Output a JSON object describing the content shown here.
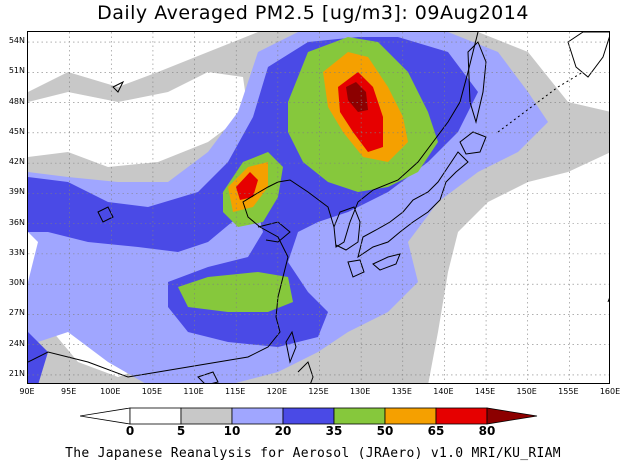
{
  "title": "Daily Averaged PM2.5 [ug/m3]: 09Aug2014",
  "footer": "The Japanese Reanalysis for Aerosol (JRAero) v1.0 MRI/KU_RIAM",
  "map": {
    "lon_range": [
      90,
      160
    ],
    "lat_range": [
      20,
      55
    ],
    "lon_ticks": [
      "90E",
      "95E",
      "100E",
      "105E",
      "110E",
      "115E",
      "120E",
      "125E",
      "130E",
      "135E",
      "140E",
      "145E",
      "150E",
      "155E",
      "160E"
    ],
    "lat_ticks": [
      "54N",
      "51N",
      "48N",
      "45N",
      "42N",
      "39N",
      "36N",
      "33N",
      "30N",
      "27N",
      "24N",
      "21N"
    ],
    "gridlines": true
  },
  "colorbar": {
    "levels": [
      "0",
      "5",
      "10",
      "20",
      "35",
      "50",
      "65",
      "80"
    ],
    "colors": [
      "#ffffff",
      "#c8c8c8",
      "#a0a6ff",
      "#4a4ae6",
      "#86c83c",
      "#f5a000",
      "#e60000",
      "#8c0000"
    ]
  }
}
